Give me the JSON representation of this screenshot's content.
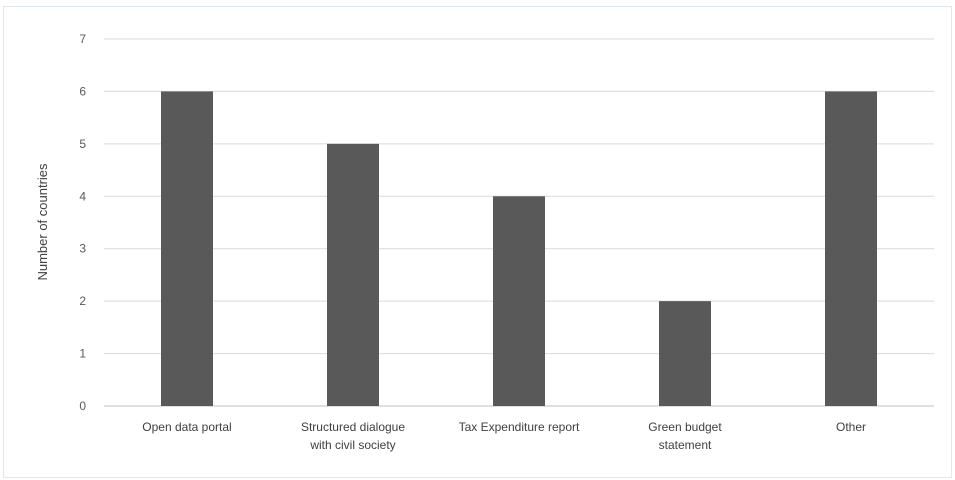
{
  "chart_data": {
    "type": "bar",
    "title": "",
    "xlabel": "",
    "ylabel": "Number of countries",
    "categories": [
      [
        "Open data portal"
      ],
      [
        "Structured dialogue",
        "with civil society"
      ],
      [
        "Tax Expenditure report"
      ],
      [
        "Green budget",
        "statement"
      ],
      [
        "Other"
      ]
    ],
    "values": [
      6,
      5,
      4,
      2,
      6
    ],
    "ylim": [
      0,
      7
    ],
    "yticks": [
      0,
      1,
      2,
      3,
      4,
      5,
      6,
      7
    ],
    "grid": true,
    "legend": "none",
    "bar_color": "#595959",
    "grid_color": "#d9d9d9"
  }
}
